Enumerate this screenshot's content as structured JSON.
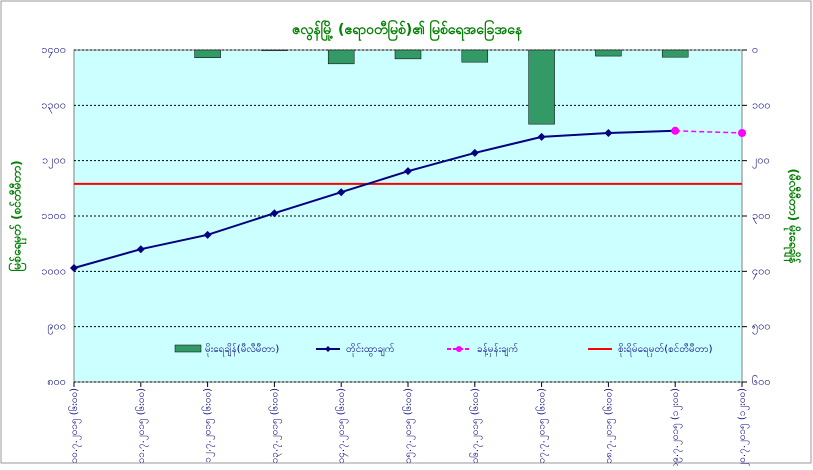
{
  "chart_data": {
    "type": "line",
    "title": "ဇလွန်မြို့ (ဧရာဝတီမြစ်)၏ မြစ်ရေအခြေအနေ",
    "ylabel": "မြစ်ရေမှတ် (စင်တီမီတာ)",
    "y2label": "(မီလီမီတာ) မိုးရေချိန်",
    "categories": [
      "၁၀.၇.၂၀၁၅ (၆း၀၀)",
      "၁၁.၇.၂၀၁၅ (၆း၀၀)",
      "၁၂.၇.၂၀၁၅ (၆း၀၀)",
      "၁၃.၇.၂၀၁၅ (၆း၀၀)",
      "၁၄.၇.၂၀၁၅ (၆း၀၀)",
      "၁၅.၇.၂၀၁၅ (၆း၀၀)",
      "၁၆.၇.၂၀၁၅ (၆း၀၀)",
      "၁၇.၇.၂၀၁၅ (၆း၀၀)",
      "၁၈.၇.၂၀၁၅ (၆း၀၀)",
      "၁၉.၇.၂၀၁၅ (၁၂း၀၀)",
      "၂၀.၇.၂၀၁၅ (၁၂း၀၀)"
    ],
    "ylim": [
      800,
      1400
    ],
    "yticks": [
      {
        "value": 800,
        "label": "၈၀၀"
      },
      {
        "value": 900,
        "label": "၉၀၀"
      },
      {
        "value": 1000,
        "label": "၁၀၀၀"
      },
      {
        "value": 1100,
        "label": "၁၁၀၀"
      },
      {
        "value": 1200,
        "label": "၁၂၀၀"
      },
      {
        "value": 1300,
        "label": "၁၃၀၀"
      },
      {
        "value": 1400,
        "label": "၁၄၀၀"
      }
    ],
    "y2lim": [
      600,
      0
    ],
    "y2ticks": [
      {
        "value": 0,
        "label": "၀"
      },
      {
        "value": 100,
        "label": "၁၀၀"
      },
      {
        "value": 200,
        "label": "၂၀၀"
      },
      {
        "value": 300,
        "label": "၃၀၀"
      },
      {
        "value": 400,
        "label": "၄၀၀"
      },
      {
        "value": 500,
        "label": "၅၀၀"
      },
      {
        "value": 600,
        "label": "၆၀၀"
      }
    ],
    "grid": true,
    "series": [
      {
        "name": "မိုးရေချိန်(မီလီမီတာ)",
        "kind": "bar",
        "axis": "y2",
        "color": "#339966",
        "values": [
          null,
          null,
          14,
          1,
          25,
          16,
          22,
          134,
          11,
          13,
          null
        ]
      },
      {
        "name": "တိုင်းထွာချက်",
        "kind": "line",
        "color": "#000080",
        "values": [
          1006,
          1040,
          1066,
          1105,
          1143,
          1181,
          1214,
          1243,
          1250,
          1254,
          null
        ]
      },
      {
        "name": "ခန့်မှန်းချက်",
        "kind": "dashed",
        "color": "#ff00ff",
        "values": [
          null,
          null,
          null,
          null,
          null,
          null,
          null,
          null,
          null,
          1254,
          1250
        ]
      }
    ],
    "danger_level": {
      "name": "စိုးရိမ်ရေမှတ်(စင်တီမီတာ)",
      "value": 1158,
      "color": "#ff0000"
    }
  }
}
